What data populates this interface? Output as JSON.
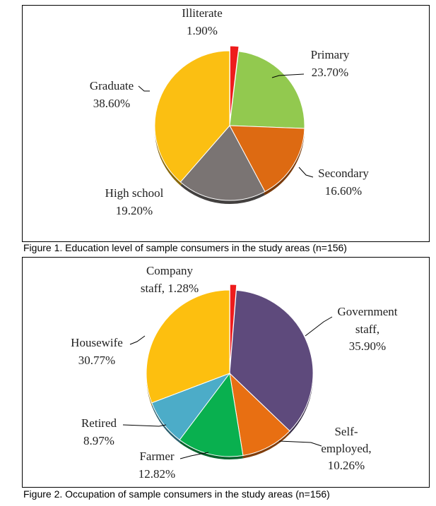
{
  "chart_data": [
    {
      "type": "pie",
      "title": "",
      "caption": "Figure 1. Education level of sample consumers in the study areas (n=156)",
      "slices": [
        {
          "label": "Illiterate",
          "value": 1.9,
          "value_text": "1.90%",
          "color": "#ee1c1c",
          "exploded": true
        },
        {
          "label": "Primary",
          "value": 23.7,
          "value_text": "23.70%",
          "color": "#92c94f"
        },
        {
          "label": "Secondary",
          "value": 16.6,
          "value_text": "16.60%",
          "color": "#dd6a12"
        },
        {
          "label": "High school",
          "value": 19.2,
          "value_text": "19.20%",
          "color": "#7a7473"
        },
        {
          "label": "Graduate",
          "value": 38.6,
          "value_text": "38.60%",
          "color": "#fbbf12"
        }
      ]
    },
    {
      "type": "pie",
      "title": "",
      "caption": "Figure 2. Occupation of sample consumers in the study areas (n=156)",
      "slices": [
        {
          "label": "Company staff, 1.28%",
          "value": 1.28,
          "value_text": "1.28%",
          "color": "#ee1c1c",
          "exploded": true
        },
        {
          "label": "Government staff, 35.90%",
          "value": 35.9,
          "value_text": "35.90%",
          "color": "#5e4a7c"
        },
        {
          "label": "Self-employed, 10.26%",
          "value": 10.26,
          "value_text": "10.26%",
          "color": "#e86f12"
        },
        {
          "label": "Farmer",
          "value": 12.82,
          "value_text": "12.82%",
          "color": "#09b04f"
        },
        {
          "label": "Retired",
          "value": 8.97,
          "value_text": "8.97%",
          "color": "#4cacc8"
        },
        {
          "label": "Housewife",
          "value": 30.77,
          "value_text": "30.77%",
          "color": "#fdbf0f"
        }
      ]
    }
  ]
}
